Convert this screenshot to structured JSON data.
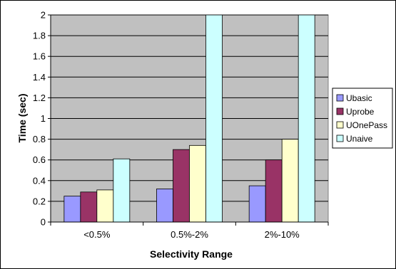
{
  "chart_data": {
    "type": "bar",
    "categories": [
      "<0.5%",
      "0.5%-2%",
      "2%-10%"
    ],
    "series": [
      {
        "name": "Ubasic",
        "values": [
          0.25,
          0.32,
          0.35
        ],
        "color": "#9999FF"
      },
      {
        "name": "Uprobe",
        "values": [
          0.29,
          0.7,
          0.6
        ],
        "color": "#993366"
      },
      {
        "name": "UOnePass",
        "values": [
          0.31,
          0.74,
          0.8
        ],
        "color": "#FFFFCC"
      },
      {
        "name": "Unaive",
        "values": [
          0.61,
          2.0,
          2.0
        ],
        "color": "#CCFFFF"
      }
    ],
    "xlabel": "Selectivity Range",
    "ylabel": "Time (sec)",
    "ylim": [
      0,
      2
    ],
    "yticks": [
      "0",
      "0.2",
      "0.4",
      "0.6",
      "0.8",
      "1",
      "1.2",
      "1.4",
      "1.6",
      "1.8",
      "2"
    ],
    "grid": true,
    "legend_position": "right",
    "plot_background": "#C0C0C0"
  }
}
